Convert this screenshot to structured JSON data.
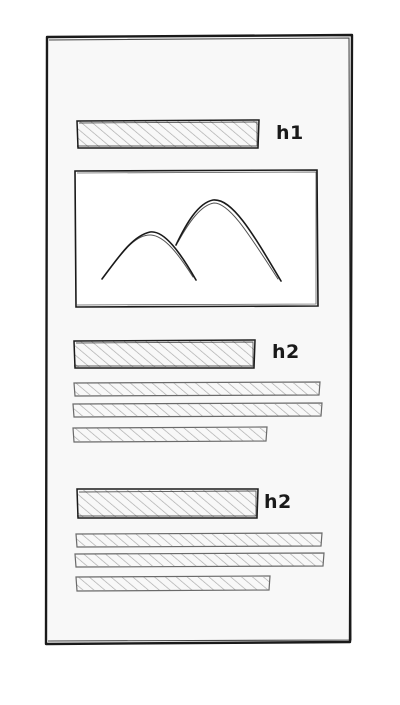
{
  "wireframe": {
    "heading_1": {
      "label": "h1"
    },
    "section_1": {
      "heading_label": "h2"
    },
    "section_2": {
      "heading_label": "h2"
    }
  },
  "colors": {
    "ink": "#1a1a1a",
    "hatch": "#a8a8a8",
    "paper": "#f8f8f8"
  }
}
